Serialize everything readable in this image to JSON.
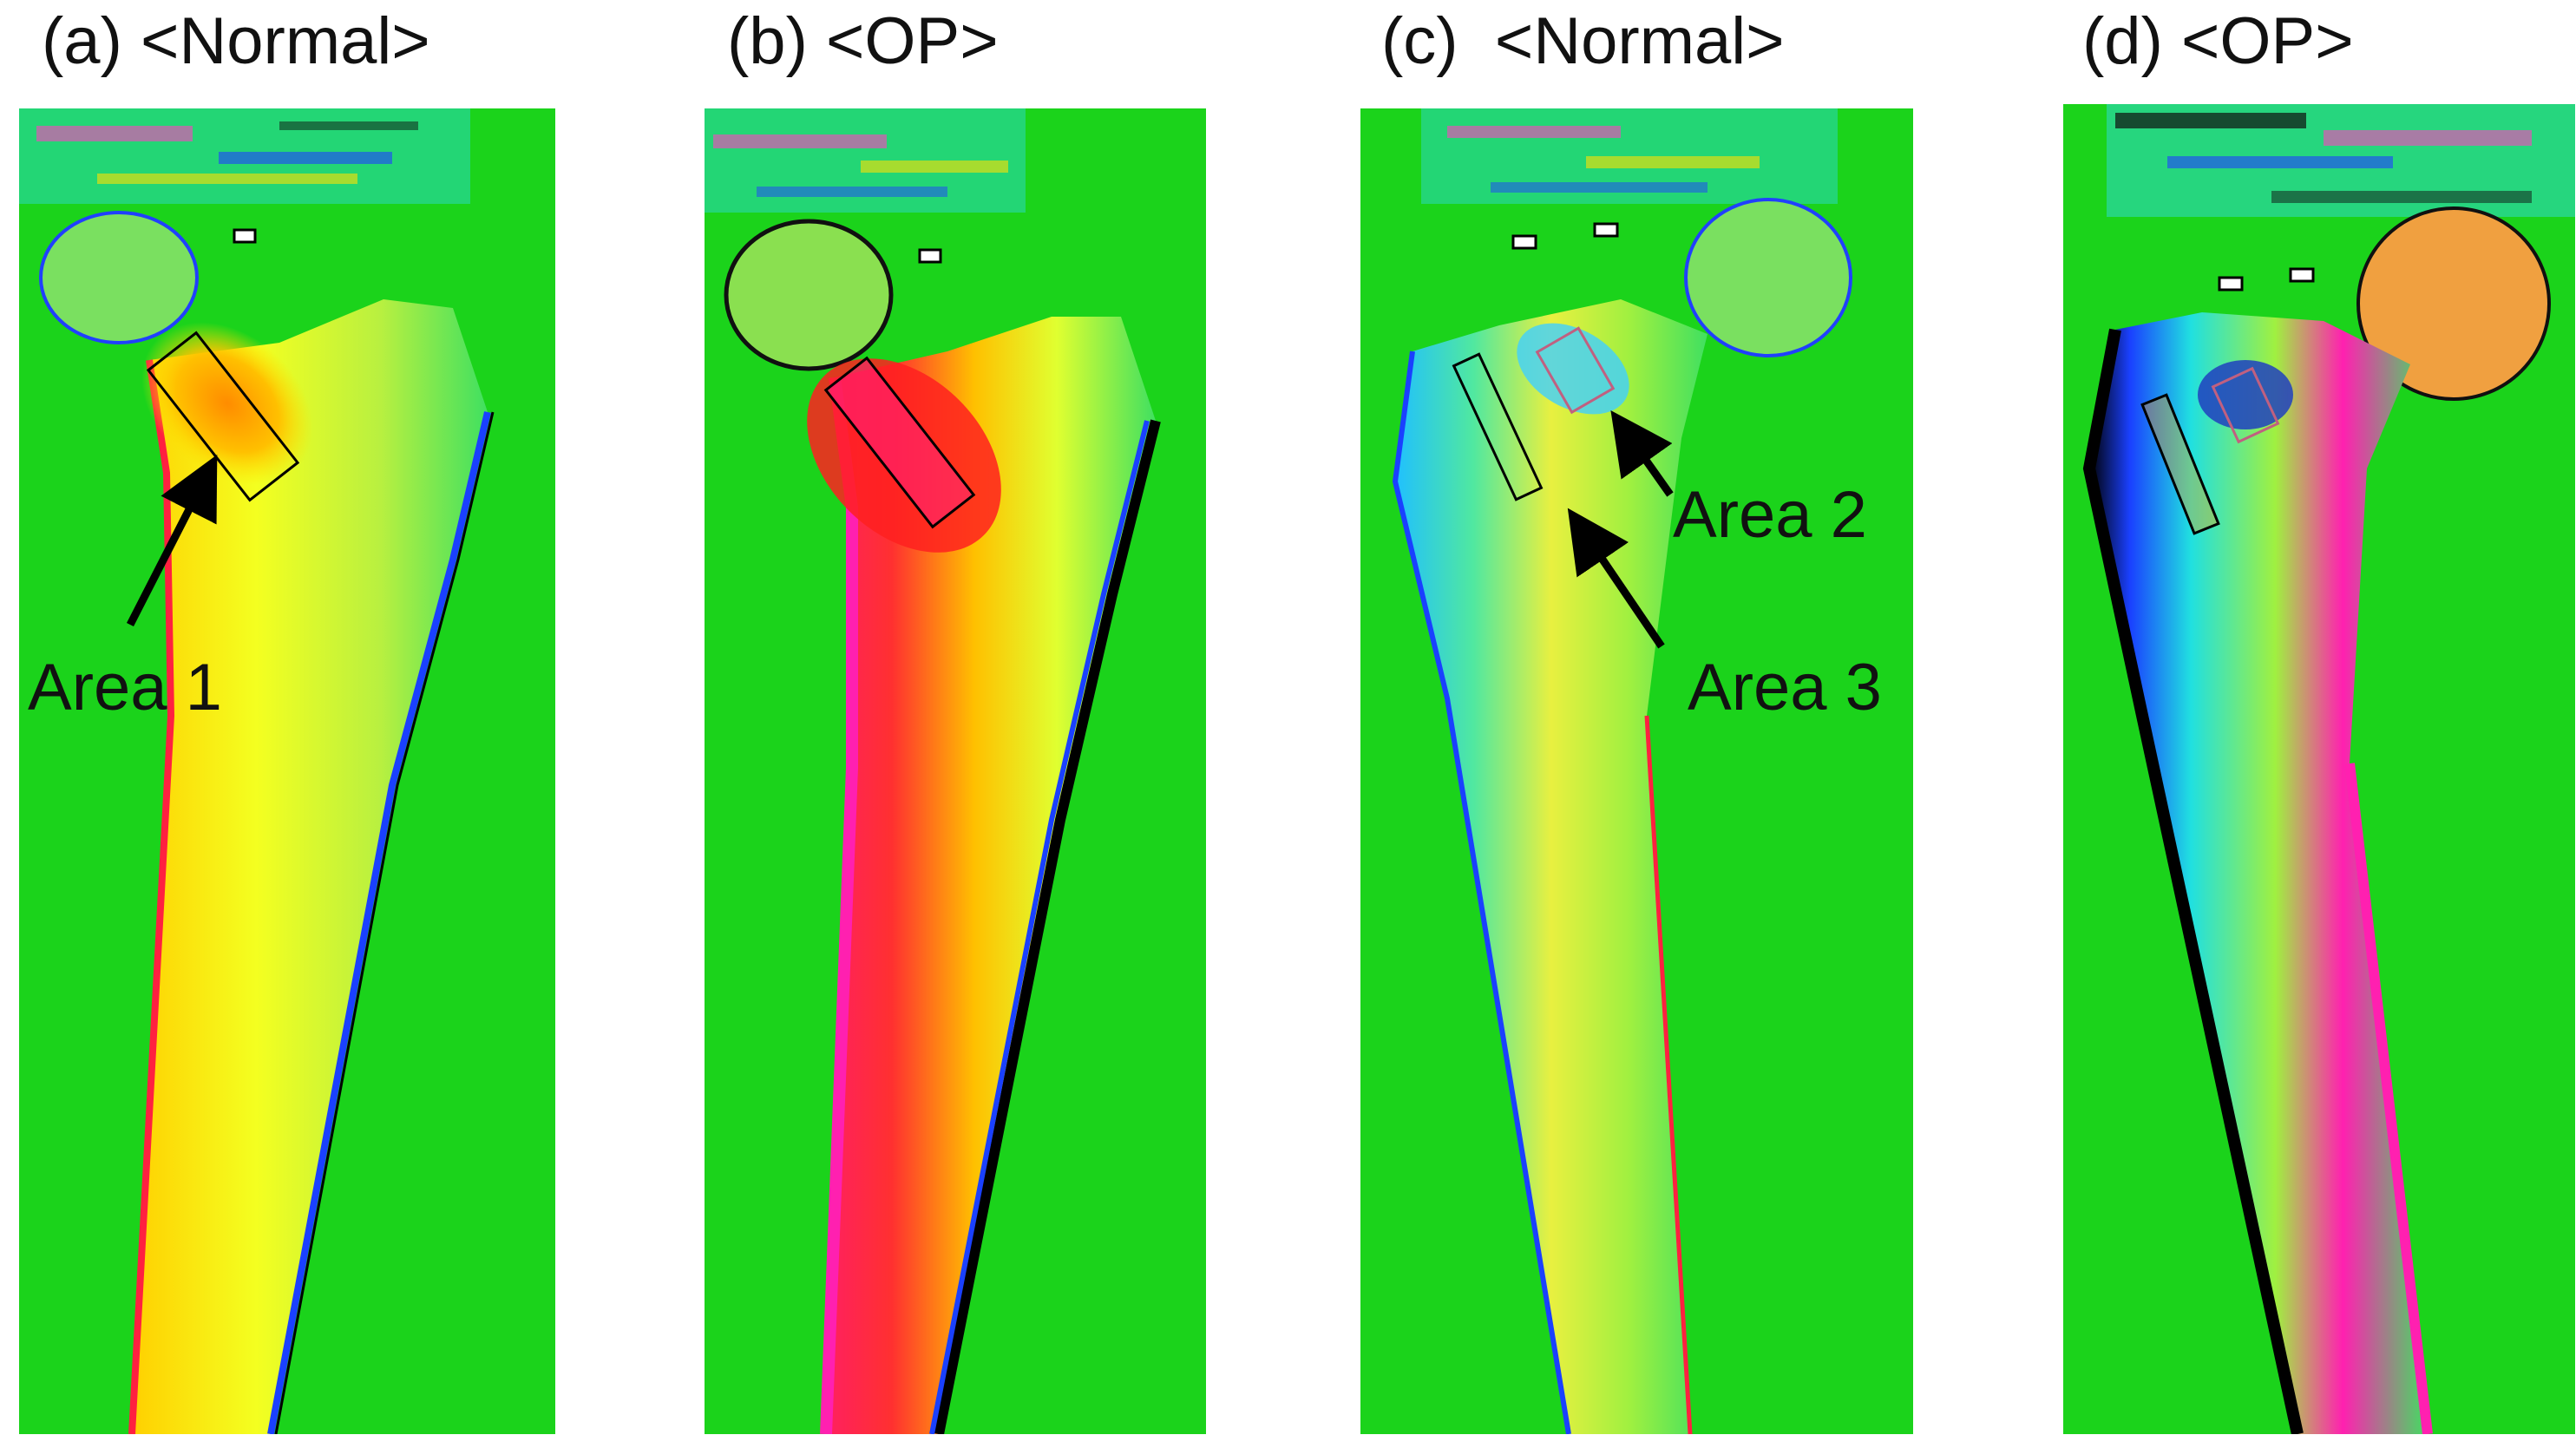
{
  "panels": [
    {
      "id": "a",
      "title": "(a) <Normal>"
    },
    {
      "id": "b",
      "title": "(b) <OP>"
    },
    {
      "id": "c",
      "title": "(c)  <Normal>"
    },
    {
      "id": "d",
      "title": "(d) <OP>"
    }
  ],
  "annotations": {
    "area1": "Area 1",
    "area2": "Area 2",
    "area3": "Area 3"
  },
  "colors": {
    "background": "#1bd31b",
    "red": "#ff1a1a",
    "magenta": "#ff20b0",
    "yellow": "#f0f000",
    "orange": "#ffa000",
    "cyan": "#20e0e0",
    "blue": "#1a40ff",
    "black": "#000000"
  }
}
